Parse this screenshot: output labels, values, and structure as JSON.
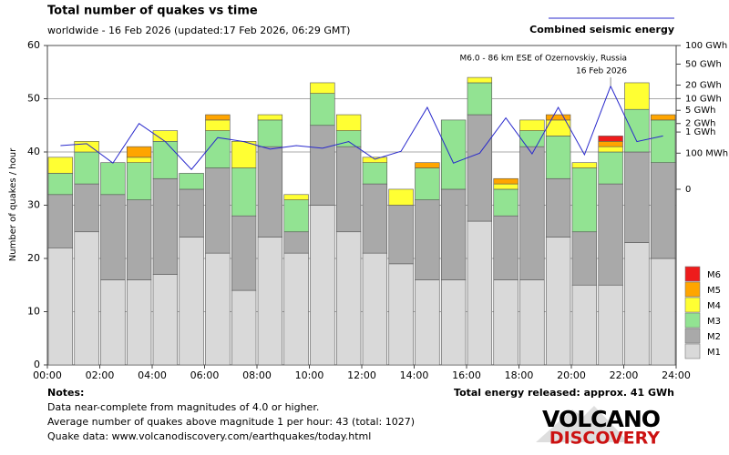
{
  "chart_data": {
    "type": "bar",
    "stacked": true,
    "title": "Total number of quakes vs time",
    "subtitle": "worldwide - 16 Feb 2026 (updated:17 Feb 2026, 06:29 GMT)",
    "y_label": "Number of quakes / hour",
    "ylim": [
      0,
      60
    ],
    "yticks": [
      0,
      10,
      20,
      30,
      40,
      50,
      60
    ],
    "grid": true,
    "xlim": [
      0,
      24
    ],
    "xticks": [
      {
        "value": 0,
        "label": "00:00"
      },
      {
        "value": 2,
        "label": "02:00"
      },
      {
        "value": 4,
        "label": "04:00"
      },
      {
        "value": 6,
        "label": "06:00"
      },
      {
        "value": 8,
        "label": "08:00"
      },
      {
        "value": 10,
        "label": "10:00"
      },
      {
        "value": 12,
        "label": "12:00"
      },
      {
        "value": 14,
        "label": "14:00"
      },
      {
        "value": 16,
        "label": "16:00"
      },
      {
        "value": 18,
        "label": "18:00"
      },
      {
        "value": 20,
        "label": "20:00"
      },
      {
        "value": 22,
        "label": "22:00"
      },
      {
        "value": 24,
        "label": "24:00"
      }
    ],
    "y2lim": [
      0,
      100
    ],
    "y2scale": "power",
    "y2power": 0.2,
    "y2ticks": [
      {
        "value": 100,
        "label": "100 GWh"
      },
      {
        "value": 50,
        "label": "50 GWh"
      },
      {
        "value": 20,
        "label": "20 GWh"
      },
      {
        "value": 10,
        "label": "10 GWh"
      },
      {
        "value": 5,
        "label": "5 GWh"
      },
      {
        "value": 2,
        "label": "2 GWh"
      },
      {
        "value": 1,
        "label": "1 GWh"
      },
      {
        "value": 0.1,
        "label": "100 MWh"
      },
      0
    ],
    "series": [
      {
        "name": "M1",
        "color": "#d9d9d9",
        "values": [
          22,
          25,
          16,
          16,
          17,
          24,
          21,
          14,
          24,
          21,
          30,
          25,
          21,
          19,
          16,
          16,
          27,
          16,
          16,
          24,
          15,
          15,
          23,
          20
        ]
      },
      {
        "name": "M2",
        "color": "#a9a9a9",
        "values": [
          10,
          9,
          16,
          15,
          18,
          9,
          16,
          14,
          17,
          4,
          15,
          16,
          13,
          11,
          15,
          17,
          20,
          12,
          25,
          11,
          10,
          19,
          17,
          18
        ]
      },
      {
        "name": "M3",
        "color": "#92e392",
        "values": [
          4,
          6,
          6,
          7,
          7,
          3,
          7,
          9,
          5,
          6,
          6,
          3,
          4,
          0,
          6,
          13,
          6,
          5,
          3,
          8,
          12,
          6,
          8,
          8
        ]
      },
      {
        "name": "M4",
        "color": "#ffff33",
        "values": [
          3,
          2,
          0,
          1,
          2,
          0,
          2,
          5,
          1,
          1,
          2,
          3,
          1,
          3,
          0,
          0,
          1,
          1,
          2,
          3,
          1,
          1,
          5,
          0
        ]
      },
      {
        "name": "M5",
        "color": "#ffa500",
        "values": [
          0,
          0,
          0,
          2,
          0,
          0,
          1,
          0,
          0,
          0,
          0,
          0,
          0,
          0,
          1,
          0,
          0,
          1,
          0,
          1,
          0,
          1,
          0,
          1
        ]
      },
      {
        "name": "M6",
        "color": "#ee1c1c",
        "values": [
          0,
          0,
          0,
          0,
          0,
          0,
          0,
          0,
          0,
          0,
          0,
          0,
          0,
          0,
          0,
          0,
          0,
          0,
          0,
          0,
          0,
          1,
          0,
          0
        ]
      }
    ],
    "energy": {
      "name": "Combined seismic energy",
      "color": "#2828cc",
      "axis": "y2",
      "type": "line",
      "values": [
        0.26,
        0.32,
        0.02,
        2,
        0.4,
        0.005,
        0.6,
        0.4,
        0.17,
        0.26,
        0.19,
        0.4,
        0.04,
        0.13,
        6,
        0.02,
        0.1,
        3,
        0.09,
        6,
        0.08,
        19,
        0.4,
        0.7
      ]
    },
    "annotation": {
      "text": "M6.0 - 86 km ESE of Ozernovskiy, Russia",
      "date": "16 Feb 2026",
      "index": 21
    },
    "total_energy": "Total energy released: approx. 41 GWh",
    "notes": {
      "heading": "Notes:",
      "lines": [
        "Data near-complete from magnitudes of 4.0 or higher.",
        "Average number of quakes above magnitude 1 per hour: 43 (total: 1027)",
        "Quake data: www.volcanodiscovery.com/earthquakes/today.html"
      ]
    },
    "logo": {
      "top": "VOLCANO",
      "bottom": "DISCOVERY"
    }
  }
}
